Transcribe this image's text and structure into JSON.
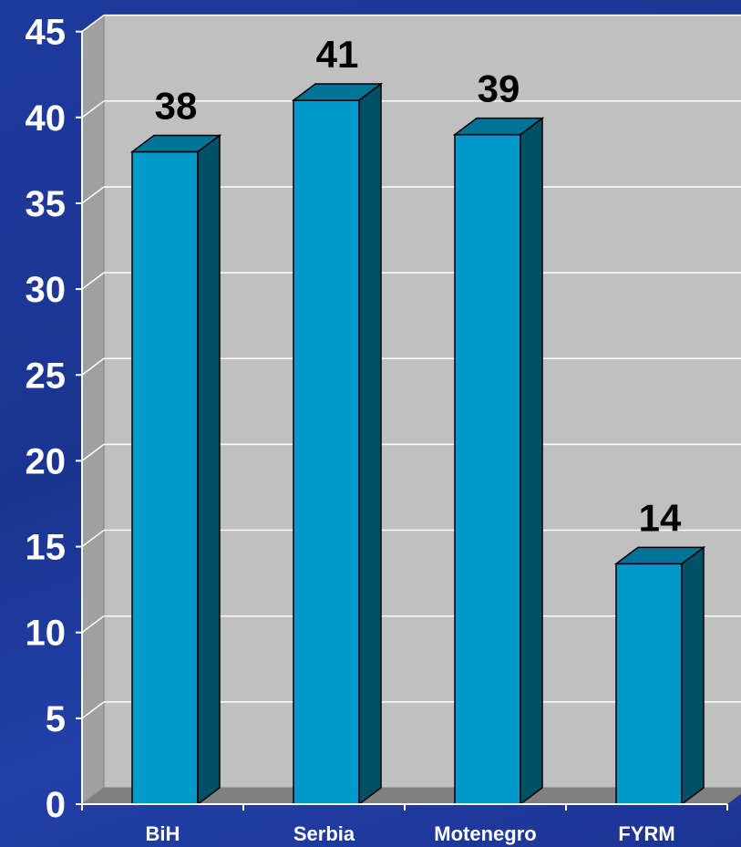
{
  "chart_data": {
    "type": "bar",
    "categories": [
      "BiH",
      "Serbia",
      "Motenegro",
      "FYRM"
    ],
    "values": [
      38,
      41,
      39,
      14
    ],
    "data_labels": [
      "38",
      "41",
      "39",
      "14"
    ],
    "title": "",
    "xlabel": "",
    "ylabel": "",
    "ylim": [
      0,
      45
    ],
    "y_ticks": [
      0,
      5,
      10,
      15,
      20,
      25,
      30,
      35,
      40,
      45
    ],
    "y_tick_labels": [
      "0",
      "5",
      "10",
      "15",
      "20",
      "25",
      "30",
      "35",
      "40",
      "45"
    ],
    "grid": true,
    "three_d": true
  },
  "colors": {
    "bar_front": "#0099cc",
    "bar_side": "#005066",
    "bar_top": "#007399",
    "plot_back": "#c0c0c0",
    "plot_side": "#a0a0a0",
    "floor": "#808080",
    "background": "#1f3a9e",
    "data_label": "#000000",
    "axis_text": "#ffffff"
  }
}
